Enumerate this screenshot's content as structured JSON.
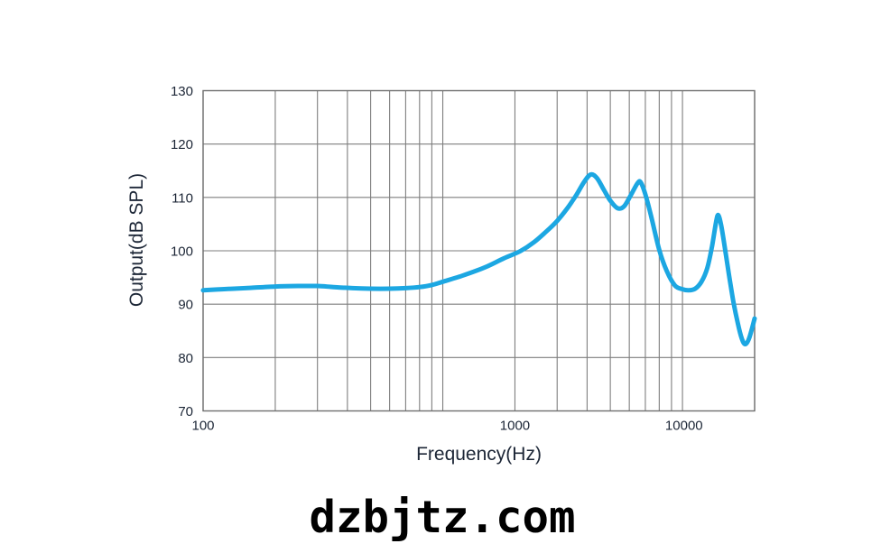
{
  "page": {
    "background": "#ffffff"
  },
  "watermark": {
    "text": "dzbjtz.com",
    "color": "#000000"
  },
  "chart_data": {
    "type": "line",
    "title": "",
    "xlabel": "Frequency(Hz)",
    "ylabel": "Output(dB SPL)",
    "x_scale": "log",
    "xlim": [
      100,
      20000
    ],
    "ylim": [
      70,
      130
    ],
    "grid": true,
    "legend": "none",
    "colors": {
      "curve": "#1ca7e2",
      "grid": "#7e7e7e",
      "border": "#6f6f6f",
      "axis_text": "#1c2636"
    },
    "x_gridlines_hz": [
      100,
      200,
      300,
      400,
      500,
      600,
      700,
      800,
      900,
      1000,
      2000,
      3000,
      4000,
      5000,
      6000,
      7000,
      8000,
      9000,
      10000,
      20000
    ],
    "y_gridlines_db": [
      70,
      80,
      90,
      100,
      110,
      120,
      130
    ],
    "y_ticks": [
      {
        "value": 130,
        "label": "130"
      },
      {
        "value": 120,
        "label": "120"
      },
      {
        "value": 110,
        "label": "110"
      },
      {
        "value": 100,
        "label": "100"
      },
      {
        "value": 90,
        "label": "90"
      },
      {
        "value": 80,
        "label": "80"
      },
      {
        "value": 70,
        "label": "70"
      }
    ],
    "x_tick_labels": [
      {
        "label": "100",
        "position_hz": 100
      },
      {
        "label": "1000",
        "position_hz": 2000
      },
      {
        "label": "10000",
        "position_hz": 10150
      }
    ],
    "series": [
      {
        "name": "frequency-response",
        "points": [
          [
            100,
            92.6
          ],
          [
            120,
            92.8
          ],
          [
            150,
            93.0
          ],
          [
            200,
            93.3
          ],
          [
            250,
            93.4
          ],
          [
            300,
            93.4
          ],
          [
            350,
            93.2
          ],
          [
            420,
            93.0
          ],
          [
            500,
            92.9
          ],
          [
            600,
            92.9
          ],
          [
            700,
            93.0
          ],
          [
            800,
            93.2
          ],
          [
            900,
            93.6
          ],
          [
            1000,
            94.2
          ],
          [
            1200,
            95.3
          ],
          [
            1500,
            96.9
          ],
          [
            1800,
            98.6
          ],
          [
            2100,
            99.9
          ],
          [
            2400,
            101.6
          ],
          [
            2700,
            103.6
          ],
          [
            3000,
            105.6
          ],
          [
            3300,
            107.9
          ],
          [
            3600,
            110.4
          ],
          [
            3900,
            113.0
          ],
          [
            4150,
            114.3
          ],
          [
            4400,
            113.6
          ],
          [
            4700,
            111.4
          ],
          [
            5000,
            109.4
          ],
          [
            5350,
            108.0
          ],
          [
            5700,
            108.3
          ],
          [
            6100,
            110.5
          ],
          [
            6500,
            112.7
          ],
          [
            6700,
            112.8
          ],
          [
            7000,
            110.6
          ],
          [
            7400,
            106.5
          ],
          [
            8000,
            100.2
          ],
          [
            8600,
            96.2
          ],
          [
            9300,
            93.5
          ],
          [
            10000,
            92.8
          ],
          [
            10600,
            92.6
          ],
          [
            11300,
            92.9
          ],
          [
            12000,
            94.2
          ],
          [
            12700,
            96.8
          ],
          [
            13300,
            101.0
          ],
          [
            13800,
            105.3
          ],
          [
            14100,
            106.7
          ],
          [
            14500,
            104.8
          ],
          [
            15000,
            100.8
          ],
          [
            15600,
            95.8
          ],
          [
            16300,
            90.5
          ],
          [
            17000,
            86.5
          ],
          [
            17700,
            83.5
          ],
          [
            18300,
            82.5
          ],
          [
            19000,
            83.7
          ],
          [
            20000,
            87.3
          ]
        ]
      }
    ]
  }
}
